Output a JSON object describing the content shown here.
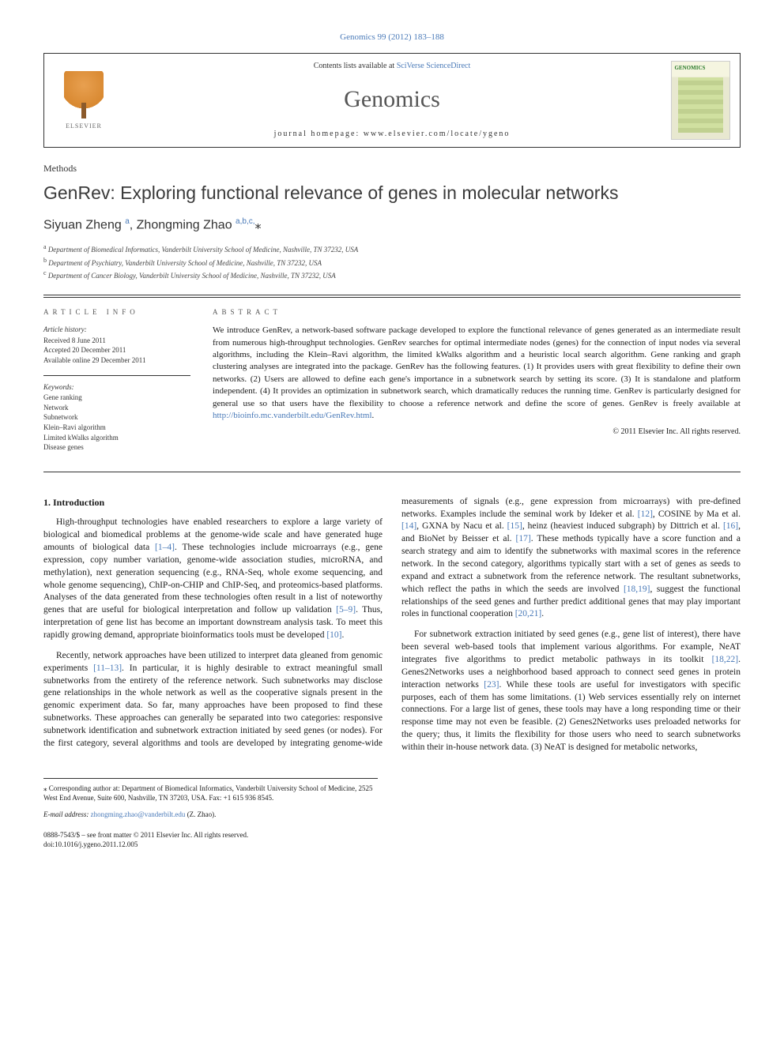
{
  "journal_ref": "Genomics 99 (2012) 183–188",
  "header": {
    "contents_prefix": "Contents lists available at ",
    "contents_link": "SciVerse ScienceDirect",
    "journal_title": "Genomics",
    "homepage_prefix": "journal homepage: ",
    "homepage_url": "www.elsevier.com/locate/ygeno",
    "publisher_name": "ELSEVIER",
    "cover_label": "GENOMICS"
  },
  "article": {
    "type": "Methods",
    "title": "GenRev: Exploring functional relevance of genes in molecular networks",
    "authors_html": "Siyuan Zheng <sup>a</sup>, Zhongming Zhao <sup>a,b,c,</sup><span class='star'>⁎</span>",
    "affiliations": [
      {
        "sup": "a",
        "text": "Department of Biomedical Informatics, Vanderbilt University School of Medicine, Nashville, TN 37232, USA"
      },
      {
        "sup": "b",
        "text": "Department of Psychiatry, Vanderbilt University School of Medicine, Nashville, TN 37232, USA"
      },
      {
        "sup": "c",
        "text": "Department of Cancer Biology, Vanderbilt University School of Medicine, Nashville, TN 37232, USA"
      }
    ]
  },
  "info": {
    "heading": "ARTICLE INFO",
    "history_label": "Article history:",
    "received": "Received 8 June 2011",
    "accepted": "Accepted 20 December 2011",
    "online": "Available online 29 December 2011",
    "keywords_label": "Keywords:",
    "keywords": [
      "Gene ranking",
      "Network",
      "Subnetwork",
      "Klein–Ravi algorithm",
      "Limited kWalks algorithm",
      "Disease genes"
    ]
  },
  "abstract": {
    "heading": "ABSTRACT",
    "text": "We introduce GenRev, a network-based software package developed to explore the functional relevance of genes generated as an intermediate result from numerous high-throughput technologies. GenRev searches for optimal intermediate nodes (genes) for the connection of input nodes via several algorithms, including the Klein–Ravi algorithm, the limited kWalks algorithm and a heuristic local search algorithm. Gene ranking and graph clustering analyses are integrated into the package. GenRev has the following features. (1) It provides users with great flexibility to define their own networks. (2) Users are allowed to define each gene's importance in a subnetwork search by setting its score. (3) It is standalone and platform independent. (4) It provides an optimization in subnetwork search, which dramatically reduces the running time. GenRev is particularly designed for general use so that users have the flexibility to choose a reference network and define the score of genes. GenRev is freely available at ",
    "link": "http://bioinfo.mc.vanderbilt.edu/GenRev.html",
    "tail": ".",
    "copyright": "© 2011 Elsevier Inc. All rights reserved."
  },
  "body": {
    "section1_head": "1. Introduction",
    "p1a": "High-throughput technologies have enabled researchers to explore a large variety of biological and biomedical problems at the genome-wide scale and have generated huge amounts of biological data ",
    "c1": "[1–4]",
    "p1b": ". These technologies include microarrays (e.g., gene expression, copy number variation, genome-wide association studies, microRNA, and methylation), next generation sequencing (e.g., RNA-Seq, whole exome sequencing, and whole genome sequencing), ChIP-on-CHIP and ChIP-Seq, and proteomics-based platforms. Analyses of the data generated from these technologies often result in a list of noteworthy genes that are useful for biological interpretation and follow up validation ",
    "c2": "[5–9]",
    "p1c": ". Thus, interpretation of gene list has become an important downstream analysis task. To meet this rapidly growing demand, appropriate bioinformatics tools must be developed ",
    "c3": "[10]",
    "p1d": ".",
    "p2a": "Recently, network approaches have been utilized to interpret data gleaned from genomic experiments ",
    "c4": "[11–13]",
    "p2b": ". In particular, it is highly desirable to extract meaningful small subnetworks from the entirety of the reference network. Such subnetworks may disclose gene relationships in the whole network as well as the cooperative signals present in the genomic experiment data. So far, many approaches have been proposed to find these subnetworks. These approaches can generally be separated into two categories: responsive subnetwork identification and subnetwork extraction initiated by seed genes (or nodes). For the first category, several algorithms and tools are developed by integrating genome-wide measurements of signals (e.g., gene expression from microarrays) with pre-defined networks. Examples include the seminal work by Ideker et al. ",
    "c5": "[12]",
    "p2c": ", COSINE by Ma et al. ",
    "c6": "[14]",
    "p2d": ", GXNA by Nacu et al. ",
    "c7": "[15]",
    "p2e": ", heinz (heaviest induced subgraph) by Dittrich et al. ",
    "c8": "[16]",
    "p2f": ", and BioNet by Beisser et al. ",
    "c9": "[17]",
    "p2g": ". These methods typically have a score function and a search strategy and aim to identify the subnetworks with maximal scores in the reference network. In the second category, algorithms typically start with a set of genes as seeds to expand and extract a subnetwork from the reference network. The resultant subnetworks, which reflect the paths in which the seeds are involved ",
    "c10": "[18,19]",
    "p2h": ", suggest the functional relationships of the seed genes and further predict additional genes that may play important roles in functional cooperation ",
    "c11": "[20,21]",
    "p2i": ".",
    "p3a": "For subnetwork extraction initiated by seed genes (e.g., gene list of interest), there have been several web-based tools that implement various algorithms. For example, NeAT integrates five algorithms to predict metabolic pathways in its toolkit ",
    "c12": "[18,22]",
    "p3b": ". Genes2Networks uses a neighborhood based approach to connect seed genes in protein interaction networks ",
    "c13": "[23]",
    "p3c": ". While these tools are useful for investigators with specific purposes, each of them has some limitations. (1) Web services essentially rely on internet connections. For a large list of genes, these tools may have a long responding time or their response time may not even be feasible. (2) Genes2Networks uses preloaded networks for the query; thus, it limits the flexibility for those users who need to search subnetworks within their in-house network data. (3) NeAT is designed for metabolic networks,"
  },
  "footer": {
    "corr_label": "⁎ Corresponding author at: Department of Biomedical Informatics, Vanderbilt University School of Medicine, 2525 West End Avenue, Suite 600, Nashville, TN 37203, USA. Fax: +1 615 936 8545.",
    "email_label": "E-mail address: ",
    "email": "zhongming.zhao@vanderbilt.edu",
    "email_suffix": " (Z. Zhao).",
    "issn_line": "0888-7543/$ – see front matter © 2011 Elsevier Inc. All rights reserved.",
    "doi": "doi:10.1016/j.ygeno.2011.12.005"
  },
  "colors": {
    "link": "#4a7ab8",
    "text": "#1a1a1a",
    "rule": "#333333"
  }
}
